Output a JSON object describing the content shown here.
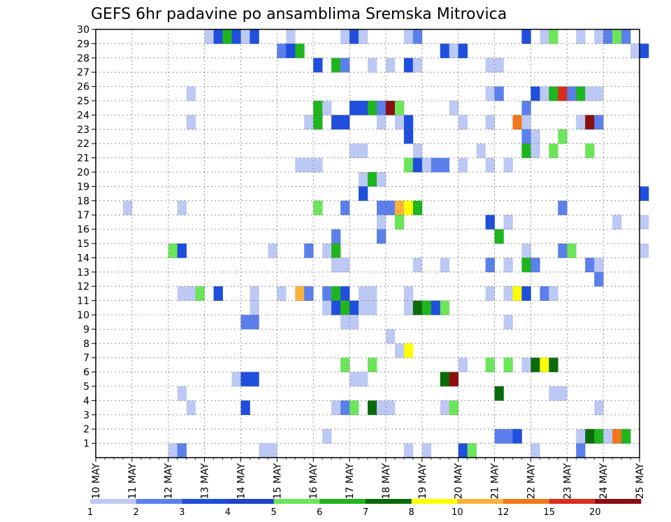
{
  "chart_data": {
    "type": "heatmap",
    "title": "GEFS 6hr padavine po ansamblima Sremska Mitrovica",
    "xlabel": "",
    "ylabel": "",
    "x_start": "10 MAY",
    "x_end": "25 MAY",
    "x_step_hours": 6,
    "x_tick_labels": [
      "10 MAY",
      "11 MAY",
      "12 MAY",
      "13 MAY",
      "14 MAY",
      "15 MAY",
      "16 MAY",
      "17 MAY",
      "18 MAY",
      "19 MAY",
      "20 MAY",
      "21 MAY",
      "22 MAY",
      "23 MAY",
      "24 MAY",
      "25 MAY"
    ],
    "y_tick_labels": [
      "1",
      "2",
      "3",
      "4",
      "5",
      "6",
      "7",
      "8",
      "9",
      "10",
      "11",
      "12",
      "13",
      "14",
      "15",
      "16",
      "17",
      "18",
      "19",
      "20",
      "21",
      "22",
      "23",
      "24",
      "25",
      "26",
      "27",
      "28",
      "29",
      "30"
    ],
    "ylim": [
      0,
      30
    ],
    "grid": true,
    "legend": {
      "placement": "bottom",
      "labels": [
        "1",
        "2",
        "3",
        "4",
        "5",
        "6",
        "7",
        "8",
        "10",
        "12",
        "15",
        "20"
      ],
      "colors": [
        "#bcc9f5",
        "#5b80eb",
        "#1f4fdc",
        "#2042c8",
        "#6ce55a",
        "#1fb51f",
        "#0b6b0b",
        "#ffff00",
        "#fbb13c",
        "#f2761c",
        "#da2c1c",
        "#8b0f0f"
      ]
    },
    "points": [
      {
        "x": "13 MAY 00Z",
        "y": 30,
        "v": 1
      },
      {
        "x": "13 MAY 06Z",
        "y": 30,
        "v": 3
      },
      {
        "x": "13 MAY 12Z",
        "y": 30,
        "v": 6
      },
      {
        "x": "13 MAY 18Z",
        "y": 30,
        "v": 3
      },
      {
        "x": "14 MAY 00Z",
        "y": 30,
        "v": 1
      },
      {
        "x": "14 MAY 06Z",
        "y": 30,
        "v": 3
      },
      {
        "x": "15 MAY 06Z",
        "y": 30,
        "v": 1
      },
      {
        "x": "16 MAY 18Z",
        "y": 30,
        "v": 1
      },
      {
        "x": "17 MAY 00Z",
        "y": 30,
        "v": 3
      },
      {
        "x": "17 MAY 06Z",
        "y": 30,
        "v": 1
      },
      {
        "x": "18 MAY 12Z",
        "y": 30,
        "v": 1
      },
      {
        "x": "18 MAY 18Z",
        "y": 30,
        "v": 2
      },
      {
        "x": "21 MAY 18Z",
        "y": 30,
        "v": 3
      },
      {
        "x": "22 MAY 06Z",
        "y": 30,
        "v": 1
      },
      {
        "x": "22 MAY 12Z",
        "y": 30,
        "v": 5
      },
      {
        "x": "23 MAY 06Z",
        "y": 30,
        "v": 1
      },
      {
        "x": "23 MAY 18Z",
        "y": 30,
        "v": 1
      },
      {
        "x": "24 MAY 00Z",
        "y": 30,
        "v": 2
      },
      {
        "x": "24 MAY 06Z",
        "y": 30,
        "v": 5
      },
      {
        "x": "24 MAY 12Z",
        "y": 30,
        "v": 2
      },
      {
        "x": "15 MAY 00Z",
        "y": 29,
        "v": 2
      },
      {
        "x": "15 MAY 06Z",
        "y": 29,
        "v": 3
      },
      {
        "x": "15 MAY 12Z",
        "y": 29,
        "v": 6
      },
      {
        "x": "19 MAY 12Z",
        "y": 29,
        "v": 3
      },
      {
        "x": "19 MAY 18Z",
        "y": 29,
        "v": 1
      },
      {
        "x": "20 MAY 00Z",
        "y": 29,
        "v": 3
      },
      {
        "x": "24 MAY 18Z",
        "y": 29,
        "v": 1
      },
      {
        "x": "25 MAY 00Z",
        "y": 29,
        "v": 3
      },
      {
        "x": "16 MAY 00Z",
        "y": 28,
        "v": 3
      },
      {
        "x": "16 MAY 12Z",
        "y": 28,
        "v": 6
      },
      {
        "x": "16 MAY 18Z",
        "y": 28,
        "v": 2
      },
      {
        "x": "17 MAY 12Z",
        "y": 28,
        "v": 1
      },
      {
        "x": "18 MAY 00Z",
        "y": 28,
        "v": 1
      },
      {
        "x": "18 MAY 12Z",
        "y": 28,
        "v": 3
      },
      {
        "x": "18 MAY 18Z",
        "y": 28,
        "v": 1
      },
      {
        "x": "20 MAY 18Z",
        "y": 28,
        "v": 1
      },
      {
        "x": "21 MAY 00Z",
        "y": 28,
        "v": 1
      },
      {
        "x": "12 MAY 12Z",
        "y": 26,
        "v": 1
      },
      {
        "x": "20 MAY 18Z",
        "y": 26,
        "v": 1
      },
      {
        "x": "21 MAY 00Z",
        "y": 26,
        "v": 2
      },
      {
        "x": "22 MAY 00Z",
        "y": 26,
        "v": 3
      },
      {
        "x": "22 MAY 06Z",
        "y": 26,
        "v": 1
      },
      {
        "x": "22 MAY 12Z",
        "y": 26,
        "v": 6
      },
      {
        "x": "22 MAY 18Z",
        "y": 26,
        "v": 15
      },
      {
        "x": "23 MAY 00Z",
        "y": 26,
        "v": 2
      },
      {
        "x": "23 MAY 06Z",
        "y": 26,
        "v": 6
      },
      {
        "x": "23 MAY 12Z",
        "y": 26,
        "v": 1
      },
      {
        "x": "23 MAY 18Z",
        "y": 26,
        "v": 1
      },
      {
        "x": "16 MAY 00Z",
        "y": 25,
        "v": 6
      },
      {
        "x": "16 MAY 06Z",
        "y": 25,
        "v": 1
      },
      {
        "x": "17 MAY 00Z",
        "y": 25,
        "v": 3
      },
      {
        "x": "17 MAY 06Z",
        "y": 25,
        "v": 3
      },
      {
        "x": "17 MAY 12Z",
        "y": 25,
        "v": 6
      },
      {
        "x": "17 MAY 18Z",
        "y": 25,
        "v": 2
      },
      {
        "x": "18 MAY 00Z",
        "y": 25,
        "v": 20
      },
      {
        "x": "18 MAY 06Z",
        "y": 25,
        "v": 5
      },
      {
        "x": "19 MAY 18Z",
        "y": 25,
        "v": 1
      },
      {
        "x": "21 MAY 18Z",
        "y": 25,
        "v": 2
      },
      {
        "x": "12 MAY 12Z",
        "y": 24,
        "v": 1
      },
      {
        "x": "15 MAY 18Z",
        "y": 24,
        "v": 1
      },
      {
        "x": "16 MAY 00Z",
        "y": 24,
        "v": 6
      },
      {
        "x": "16 MAY 12Z",
        "y": 24,
        "v": 3
      },
      {
        "x": "16 MAY 18Z",
        "y": 24,
        "v": 3
      },
      {
        "x": "17 MAY 18Z",
        "y": 24,
        "v": 1
      },
      {
        "x": "18 MAY 06Z",
        "y": 24,
        "v": 1
      },
      {
        "x": "18 MAY 12Z",
        "y": 24,
        "v": 3
      },
      {
        "x": "20 MAY 00Z",
        "y": 24,
        "v": 1
      },
      {
        "x": "20 MAY 18Z",
        "y": 24,
        "v": 1
      },
      {
        "x": "21 MAY 12Z",
        "y": 24,
        "v": 12
      },
      {
        "x": "21 MAY 18Z",
        "y": 24,
        "v": 1
      },
      {
        "x": "23 MAY 06Z",
        "y": 24,
        "v": 1
      },
      {
        "x": "23 MAY 12Z",
        "y": 24,
        "v": 20
      },
      {
        "x": "23 MAY 18Z",
        "y": 24,
        "v": 2
      },
      {
        "x": "18 MAY 12Z",
        "y": 23,
        "v": 3
      },
      {
        "x": "21 MAY 18Z",
        "y": 23,
        "v": 2
      },
      {
        "x": "22 MAY 00Z",
        "y": 23,
        "v": 1
      },
      {
        "x": "22 MAY 18Z",
        "y": 23,
        "v": 5
      },
      {
        "x": "17 MAY 00Z",
        "y": 22,
        "v": 1
      },
      {
        "x": "17 MAY 06Z",
        "y": 22,
        "v": 1
      },
      {
        "x": "18 MAY 18Z",
        "y": 22,
        "v": 1
      },
      {
        "x": "20 MAY 12Z",
        "y": 22,
        "v": 1
      },
      {
        "x": "21 MAY 18Z",
        "y": 22,
        "v": 6
      },
      {
        "x": "22 MAY 00Z",
        "y": 22,
        "v": 1
      },
      {
        "x": "22 MAY 12Z",
        "y": 22,
        "v": 5
      },
      {
        "x": "23 MAY 12Z",
        "y": 22,
        "v": 5
      },
      {
        "x": "15 MAY 12Z",
        "y": 21,
        "v": 1
      },
      {
        "x": "15 MAY 18Z",
        "y": 21,
        "v": 1
      },
      {
        "x": "16 MAY 00Z",
        "y": 21,
        "v": 1
      },
      {
        "x": "18 MAY 12Z",
        "y": 21,
        "v": 5
      },
      {
        "x": "18 MAY 18Z",
        "y": 21,
        "v": 3
      },
      {
        "x": "19 MAY 00Z",
        "y": 21,
        "v": 1
      },
      {
        "x": "19 MAY 06Z",
        "y": 21,
        "v": 2
      },
      {
        "x": "19 MAY 12Z",
        "y": 21,
        "v": 2
      },
      {
        "x": "20 MAY 00Z",
        "y": 21,
        "v": 1
      },
      {
        "x": "20 MAY 18Z",
        "y": 21,
        "v": 1
      },
      {
        "x": "21 MAY 06Z",
        "y": 21,
        "v": 1
      },
      {
        "x": "17 MAY 06Z",
        "y": 20,
        "v": 1
      },
      {
        "x": "17 MAY 12Z",
        "y": 20,
        "v": 6
      },
      {
        "x": "17 MAY 18Z",
        "y": 20,
        "v": 1
      },
      {
        "x": "17 MAY 06Z",
        "y": 19,
        "v": 3
      },
      {
        "x": "25 MAY 00Z",
        "y": 19,
        "v": 3
      },
      {
        "x": "10 MAY 18Z",
        "y": 18,
        "v": 1
      },
      {
        "x": "12 MAY 06Z",
        "y": 18,
        "v": 1
      },
      {
        "x": "16 MAY 00Z",
        "y": 18,
        "v": 5
      },
      {
        "x": "16 MAY 18Z",
        "y": 18,
        "v": 2
      },
      {
        "x": "17 MAY 18Z",
        "y": 18,
        "v": 2
      },
      {
        "x": "18 MAY 00Z",
        "y": 18,
        "v": 2
      },
      {
        "x": "18 MAY 06Z",
        "y": 18,
        "v": 10
      },
      {
        "x": "18 MAY 12Z",
        "y": 18,
        "v": 8
      },
      {
        "x": "18 MAY 18Z",
        "y": 18,
        "v": 6
      },
      {
        "x": "22 MAY 18Z",
        "y": 18,
        "v": 2
      },
      {
        "x": "17 MAY 18Z",
        "y": 17,
        "v": 1
      },
      {
        "x": "18 MAY 06Z",
        "y": 17,
        "v": 5
      },
      {
        "x": "20 MAY 18Z",
        "y": 17,
        "v": 3
      },
      {
        "x": "21 MAY 06Z",
        "y": 17,
        "v": 1
      },
      {
        "x": "24 MAY 06Z",
        "y": 17,
        "v": 1
      },
      {
        "x": "25 MAY 00Z",
        "y": 17,
        "v": 1
      },
      {
        "x": "16 MAY 12Z",
        "y": 16,
        "v": 2
      },
      {
        "x": "17 MAY 18Z",
        "y": 16,
        "v": 2
      },
      {
        "x": "21 MAY 00Z",
        "y": 16,
        "v": 6
      },
      {
        "x": "12 MAY 00Z",
        "y": 15,
        "v": 5
      },
      {
        "x": "12 MAY 06Z",
        "y": 15,
        "v": 3
      },
      {
        "x": "14 MAY 18Z",
        "y": 15,
        "v": 1
      },
      {
        "x": "15 MAY 18Z",
        "y": 15,
        "v": 2
      },
      {
        "x": "16 MAY 06Z",
        "y": 15,
        "v": 1
      },
      {
        "x": "16 MAY 12Z",
        "y": 15,
        "v": 6
      },
      {
        "x": "21 MAY 18Z",
        "y": 15,
        "v": 1
      },
      {
        "x": "22 MAY 18Z",
        "y": 15,
        "v": 2
      },
      {
        "x": "23 MAY 00Z",
        "y": 15,
        "v": 5
      },
      {
        "x": "25 MAY 00Z",
        "y": 15,
        "v": 1
      },
      {
        "x": "16 MAY 12Z",
        "y": 14,
        "v": 1
      },
      {
        "x": "16 MAY 18Z",
        "y": 14,
        "v": 1
      },
      {
        "x": "18 MAY 18Z",
        "y": 14,
        "v": 1
      },
      {
        "x": "19 MAY 12Z",
        "y": 14,
        "v": 1
      },
      {
        "x": "20 MAY 18Z",
        "y": 14,
        "v": 2
      },
      {
        "x": "21 MAY 06Z",
        "y": 14,
        "v": 1
      },
      {
        "x": "21 MAY 18Z",
        "y": 14,
        "v": 6
      },
      {
        "x": "22 MAY 00Z",
        "y": 14,
        "v": 2
      },
      {
        "x": "23 MAY 12Z",
        "y": 14,
        "v": 2
      },
      {
        "x": "23 MAY 18Z",
        "y": 14,
        "v": 1
      },
      {
        "x": "23 MAY 18Z",
        "y": 13,
        "v": 2
      },
      {
        "x": "12 MAY 06Z",
        "y": 12,
        "v": 1
      },
      {
        "x": "12 MAY 12Z",
        "y": 12,
        "v": 1
      },
      {
        "x": "12 MAY 18Z",
        "y": 12,
        "v": 5
      },
      {
        "x": "13 MAY 06Z",
        "y": 12,
        "v": 3
      },
      {
        "x": "14 MAY 06Z",
        "y": 12,
        "v": 1
      },
      {
        "x": "15 MAY 00Z",
        "y": 12,
        "v": 1
      },
      {
        "x": "15 MAY 12Z",
        "y": 12,
        "v": 10
      },
      {
        "x": "15 MAY 18Z",
        "y": 12,
        "v": 2
      },
      {
        "x": "16 MAY 06Z",
        "y": 12,
        "v": 2
      },
      {
        "x": "16 MAY 12Z",
        "y": 12,
        "v": 6
      },
      {
        "x": "16 MAY 18Z",
        "y": 12,
        "v": 3
      },
      {
        "x": "17 MAY 06Z",
        "y": 12,
        "v": 1
      },
      {
        "x": "17 MAY 12Z",
        "y": 12,
        "v": 1
      },
      {
        "x": "18 MAY 12Z",
        "y": 12,
        "v": 1
      },
      {
        "x": "20 MAY 18Z",
        "y": 12,
        "v": 1
      },
      {
        "x": "21 MAY 06Z",
        "y": 12,
        "v": 1
      },
      {
        "x": "21 MAY 12Z",
        "y": 12,
        "v": 8
      },
      {
        "x": "21 MAY 18Z",
        "y": 12,
        "v": 3
      },
      {
        "x": "22 MAY 06Z",
        "y": 12,
        "v": 2
      },
      {
        "x": "22 MAY 12Z",
        "y": 12,
        "v": 1
      },
      {
        "x": "14 MAY 06Z",
        "y": 11,
        "v": 1
      },
      {
        "x": "16 MAY 06Z",
        "y": 11,
        "v": 1
      },
      {
        "x": "16 MAY 12Z",
        "y": 11,
        "v": 3
      },
      {
        "x": "16 MAY 18Z",
        "y": 11,
        "v": 6
      },
      {
        "x": "17 MAY 00Z",
        "y": 11,
        "v": 3
      },
      {
        "x": "17 MAY 06Z",
        "y": 11,
        "v": 1
      },
      {
        "x": "17 MAY 12Z",
        "y": 11,
        "v": 1
      },
      {
        "x": "18 MAY 12Z",
        "y": 11,
        "v": 1
      },
      {
        "x": "18 MAY 18Z",
        "y": 11,
        "v": 7
      },
      {
        "x": "19 MAY 00Z",
        "y": 11,
        "v": 6
      },
      {
        "x": "19 MAY 06Z",
        "y": 11,
        "v": 3
      },
      {
        "x": "19 MAY 12Z",
        "y": 11,
        "v": 5
      },
      {
        "x": "14 MAY 00Z",
        "y": 10,
        "v": 2
      },
      {
        "x": "14 MAY 06Z",
        "y": 10,
        "v": 2
      },
      {
        "x": "16 MAY 18Z",
        "y": 10,
        "v": 1
      },
      {
        "x": "17 MAY 00Z",
        "y": 10,
        "v": 1
      },
      {
        "x": "21 MAY 06Z",
        "y": 10,
        "v": 1
      },
      {
        "x": "18 MAY 00Z",
        "y": 9,
        "v": 1
      },
      {
        "x": "18 MAY 06Z",
        "y": 8,
        "v": 1
      },
      {
        "x": "18 MAY 12Z",
        "y": 8,
        "v": 8
      },
      {
        "x": "16 MAY 18Z",
        "y": 7,
        "v": 5
      },
      {
        "x": "17 MAY 12Z",
        "y": 7,
        "v": 5
      },
      {
        "x": "20 MAY 00Z",
        "y": 7,
        "v": 1
      },
      {
        "x": "20 MAY 18Z",
        "y": 7,
        "v": 5
      },
      {
        "x": "21 MAY 06Z",
        "y": 7,
        "v": 5
      },
      {
        "x": "21 MAY 18Z",
        "y": 7,
        "v": 1
      },
      {
        "x": "22 MAY 00Z",
        "y": 7,
        "v": 7
      },
      {
        "x": "22 MAY 06Z",
        "y": 7,
        "v": 8
      },
      {
        "x": "22 MAY 12Z",
        "y": 7,
        "v": 7
      },
      {
        "x": "13 MAY 18Z",
        "y": 6,
        "v": 1
      },
      {
        "x": "14 MAY 00Z",
        "y": 6,
        "v": 3
      },
      {
        "x": "14 MAY 06Z",
        "y": 6,
        "v": 3
      },
      {
        "x": "17 MAY 00Z",
        "y": 6,
        "v": 1
      },
      {
        "x": "17 MAY 06Z",
        "y": 6,
        "v": 1
      },
      {
        "x": "19 MAY 12Z",
        "y": 6,
        "v": 7
      },
      {
        "x": "19 MAY 18Z",
        "y": 6,
        "v": 20
      },
      {
        "x": "12 MAY 06Z",
        "y": 5,
        "v": 1
      },
      {
        "x": "21 MAY 00Z",
        "y": 5,
        "v": 7
      },
      {
        "x": "22 MAY 12Z",
        "y": 5,
        "v": 1
      },
      {
        "x": "22 MAY 18Z",
        "y": 5,
        "v": 1
      },
      {
        "x": "12 MAY 12Z",
        "y": 4,
        "v": 1
      },
      {
        "x": "14 MAY 00Z",
        "y": 4,
        "v": 3
      },
      {
        "x": "16 MAY 12Z",
        "y": 4,
        "v": 1
      },
      {
        "x": "16 MAY 18Z",
        "y": 4,
        "v": 2
      },
      {
        "x": "17 MAY 00Z",
        "y": 4,
        "v": 5
      },
      {
        "x": "17 MAY 12Z",
        "y": 4,
        "v": 7
      },
      {
        "x": "17 MAY 18Z",
        "y": 4,
        "v": 1
      },
      {
        "x": "18 MAY 00Z",
        "y": 4,
        "v": 1
      },
      {
        "x": "19 MAY 12Z",
        "y": 4,
        "v": 1
      },
      {
        "x": "19 MAY 18Z",
        "y": 4,
        "v": 5
      },
      {
        "x": "23 MAY 18Z",
        "y": 4,
        "v": 1
      },
      {
        "x": "16 MAY 06Z",
        "y": 2,
        "v": 1
      },
      {
        "x": "21 MAY 00Z",
        "y": 2,
        "v": 2
      },
      {
        "x": "21 MAY 06Z",
        "y": 2,
        "v": 2
      },
      {
        "x": "21 MAY 12Z",
        "y": 2,
        "v": 3
      },
      {
        "x": "23 MAY 06Z",
        "y": 2,
        "v": 1
      },
      {
        "x": "23 MAY 12Z",
        "y": 2,
        "v": 7
      },
      {
        "x": "23 MAY 18Z",
        "y": 2,
        "v": 6
      },
      {
        "x": "24 MAY 00Z",
        "y": 2,
        "v": 1
      },
      {
        "x": "24 MAY 06Z",
        "y": 2,
        "v": 12
      },
      {
        "x": "24 MAY 12Z",
        "y": 2,
        "v": 6
      },
      {
        "x": "12 MAY 00Z",
        "y": 1,
        "v": 1
      },
      {
        "x": "12 MAY 06Z",
        "y": 1,
        "v": 2
      },
      {
        "x": "14 MAY 12Z",
        "y": 1,
        "v": 1
      },
      {
        "x": "14 MAY 18Z",
        "y": 1,
        "v": 1
      },
      {
        "x": "18 MAY 12Z",
        "y": 1,
        "v": 1
      },
      {
        "x": "19 MAY 00Z",
        "y": 1,
        "v": 1
      },
      {
        "x": "20 MAY 00Z",
        "y": 1,
        "v": 3
      },
      {
        "x": "20 MAY 06Z",
        "y": 1,
        "v": 5
      },
      {
        "x": "22 MAY 00Z",
        "y": 1,
        "v": 1
      },
      {
        "x": "23 MAY 06Z",
        "y": 1,
        "v": 2
      }
    ]
  }
}
